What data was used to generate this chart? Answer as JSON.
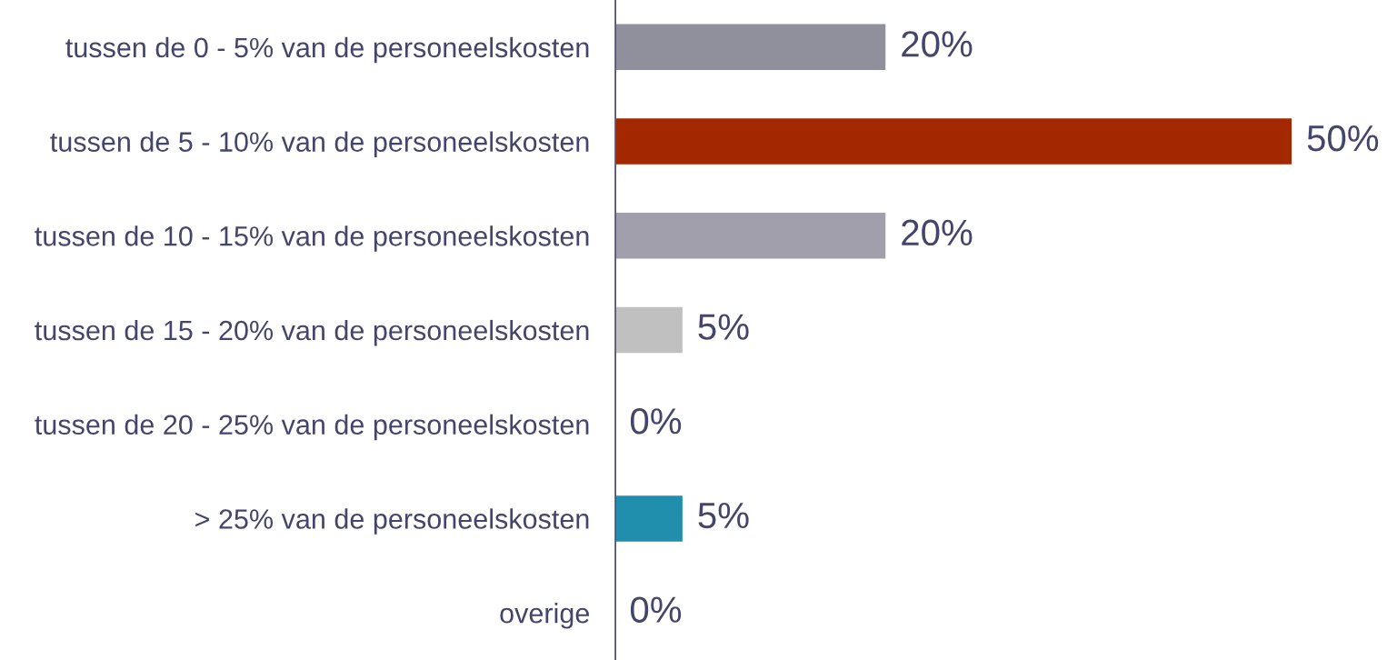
{
  "chart_data": {
    "type": "bar",
    "orientation": "horizontal",
    "categories": [
      "tussen de 0 - 5% van de personeelskosten",
      "tussen de 5 - 10% van de personeelskosten",
      "tussen de 10 - 15% van de personeelskosten",
      "tussen de 15 - 20% van de personeelskosten",
      "tussen de 20 - 25% van de personeelskosten",
      "> 25% van de personeelskosten",
      "overige"
    ],
    "values": [
      20,
      50,
      20,
      5,
      0,
      5,
      0
    ],
    "colors": [
      "#8f909c",
      "#a32800",
      "#a09fab",
      "#c0c0c0",
      null,
      "#1f8fad",
      null
    ],
    "value_labels": [
      "20%",
      "50%",
      "20%",
      "5%",
      "0%",
      "5%",
      "0%"
    ]
  }
}
